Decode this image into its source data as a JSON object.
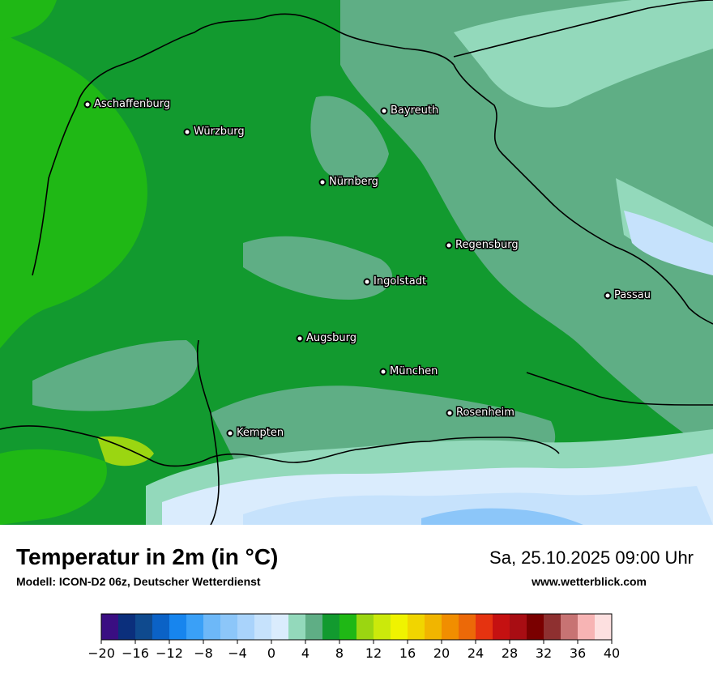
{
  "title": "Temperatur in 2m (in °C)",
  "subtitle": "Modell: ICON-D2 06z, Deutscher Wetterdienst",
  "datetime": "Sa, 25.10.2025 09:00 Uhr",
  "website": "www.wetterblick.com",
  "cities": [
    {
      "name": "Aschaffenburg"
    },
    {
      "name": "Würzburg"
    },
    {
      "name": "Bayreuth"
    },
    {
      "name": "Nürnberg"
    },
    {
      "name": "Regensburg"
    },
    {
      "name": "Ingolstadt"
    },
    {
      "name": "Passau"
    },
    {
      "name": "Augsburg"
    },
    {
      "name": "München"
    },
    {
      "name": "Rosenheim"
    },
    {
      "name": "Kempten"
    }
  ],
  "legend": {
    "ticks": [
      "−20",
      "−16",
      "−12",
      "−8",
      "−4",
      "0",
      "4",
      "8",
      "12",
      "16",
      "20",
      "24",
      "28",
      "32",
      "36",
      "40"
    ],
    "range": [
      -20,
      40
    ],
    "step": 2,
    "colors": [
      "#3a0e82",
      "#0b2f7c",
      "#0f4a8e",
      "#0b62c6",
      "#1785ee",
      "#3aa0f7",
      "#6db8f8",
      "#8cc6f9",
      "#a9d3fb",
      "#c6e2fc",
      "#daecfd",
      "#93d9bb",
      "#5fae85",
      "#129a2f",
      "#1fb815",
      "#9bd611",
      "#cbe90b",
      "#f0f300",
      "#f1d500",
      "#f1b500",
      "#f18e00",
      "#ec6908",
      "#e53310",
      "#c51111",
      "#a80d13",
      "#7a0000",
      "#8e3030",
      "#c77373",
      "#f7b4b4",
      "#fde0e0"
    ]
  },
  "map_colors": {
    "green_12": "#12a12e",
    "green_14": "#1fb815",
    "green_mid": "#5fae85",
    "mint": "#93d9bb",
    "light_blue": "#c6e2fc",
    "lighter_blue": "#daecfd",
    "blue": "#8cc6f9",
    "yellow_green": "#9bd611"
  }
}
